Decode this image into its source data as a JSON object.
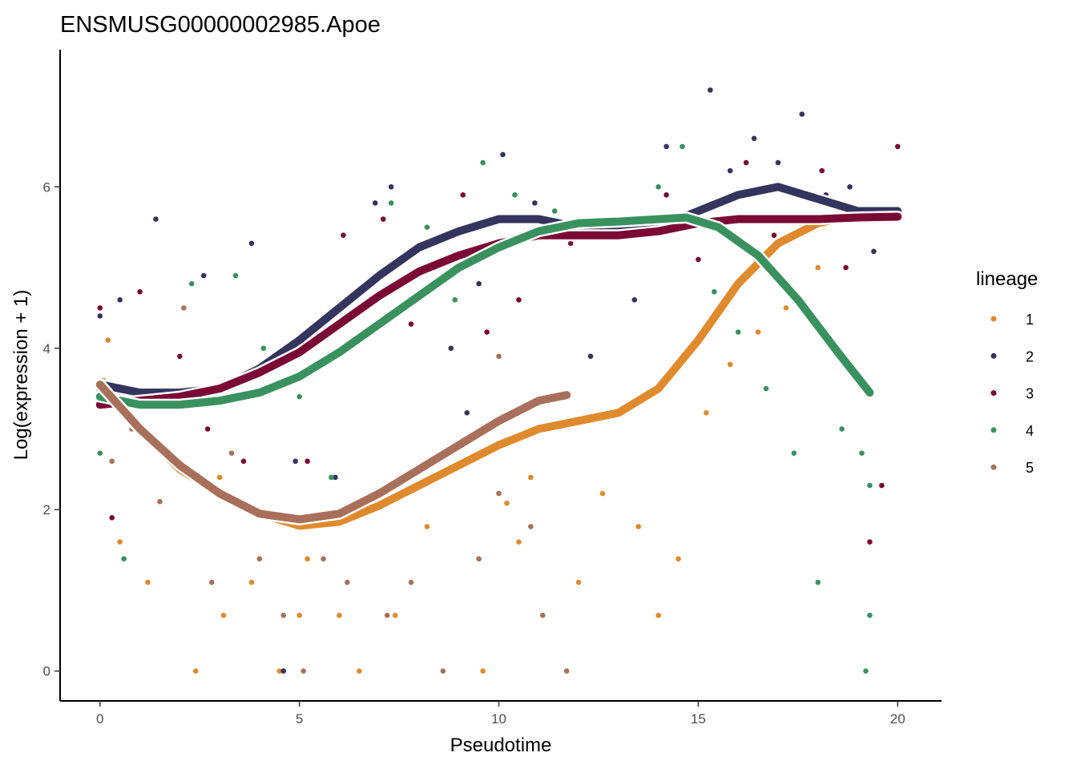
{
  "chart_data": {
    "type": "scatter",
    "title": "ENSMUSG00000002985.Apoe",
    "x_label": "Pseudotime",
    "y_label": "Log(expression + 1)",
    "legend_title": "lineage",
    "legend_position": "right",
    "grid": false,
    "xlim": [
      -1,
      21.1
    ],
    "ylim": [
      -0.37,
      7.7
    ],
    "xticks": [
      0,
      5,
      10,
      15,
      20
    ],
    "yticks": [
      0,
      2,
      4,
      6
    ],
    "series": [
      {
        "name": "1",
        "color": "#e08a2e",
        "x": [
          0.1,
          0.5,
          1.2,
          2.4,
          3.1,
          3.8,
          4.5,
          5.2,
          6.0,
          6.5,
          7.4,
          8.2,
          9.6,
          10.2,
          10.8,
          11.4,
          12.6,
          13.5,
          14.5,
          15.2,
          15.8,
          16.5,
          17.2,
          18.0,
          0.2,
          3.0,
          5.0,
          10.5,
          12.0,
          14.0
        ],
        "y": [
          3.6,
          1.6,
          1.1,
          0,
          0.69,
          1.1,
          0,
          1.39,
          0.69,
          0,
          0.69,
          1.79,
          0,
          2.08,
          2.4,
          3.0,
          2.2,
          1.79,
          1.39,
          3.2,
          3.8,
          4.2,
          4.5,
          5.0,
          4.1,
          2.4,
          0.69,
          1.6,
          1.1,
          0.69
        ],
        "fit_x": [
          0,
          1,
          2,
          3,
          4,
          5,
          6,
          7,
          8,
          9,
          10,
          11,
          12,
          13,
          14,
          15,
          16,
          17,
          18,
          19,
          20
        ],
        "fit_y": [
          3.5,
          3.0,
          2.5,
          2.2,
          1.95,
          1.8,
          1.85,
          2.05,
          2.3,
          2.55,
          2.8,
          3.0,
          3.1,
          3.2,
          3.5,
          4.1,
          4.8,
          5.3,
          5.55,
          5.65,
          5.7
        ]
      },
      {
        "name": "2",
        "color": "#34345e",
        "x": [
          0.0,
          0.5,
          1.4,
          2.6,
          3.8,
          4.9,
          5.9,
          6.9,
          7.3,
          8.8,
          9.5,
          10.1,
          10.9,
          12.3,
          13.4,
          14.2,
          14.9,
          15.3,
          15.8,
          16.4,
          17.0,
          17.6,
          18.2,
          18.8,
          19.4,
          20.0,
          4.6,
          9.2
        ],
        "y": [
          4.4,
          4.6,
          5.6,
          4.9,
          5.3,
          2.6,
          2.4,
          5.8,
          6.0,
          4.0,
          4.8,
          6.4,
          5.8,
          3.9,
          4.6,
          6.5,
          5.7,
          7.2,
          6.2,
          6.6,
          6.3,
          6.9,
          5.9,
          6.0,
          5.2,
          5.6,
          0,
          3.2
        ],
        "fit_x": [
          0,
          1,
          2,
          3,
          4,
          5,
          6,
          7,
          8,
          9,
          10,
          11,
          12,
          13,
          14,
          15,
          16,
          17,
          18,
          19,
          20
        ],
        "fit_y": [
          3.55,
          3.45,
          3.45,
          3.5,
          3.75,
          4.1,
          4.5,
          4.9,
          5.25,
          5.45,
          5.6,
          5.6,
          5.5,
          5.45,
          5.5,
          5.7,
          5.9,
          6.0,
          5.85,
          5.7,
          5.7
        ]
      },
      {
        "name": "3",
        "color": "#7a0a35",
        "x": [
          0.0,
          0.3,
          1.0,
          2.0,
          2.7,
          3.6,
          4.3,
          5.2,
          6.1,
          7.1,
          7.8,
          8.5,
          9.1,
          9.7,
          10.5,
          11.8,
          13.0,
          14.2,
          15.0,
          15.6,
          16.2,
          16.9,
          17.5,
          18.1,
          18.7,
          19.3,
          20.0,
          19.6
        ],
        "y": [
          4.5,
          1.9,
          4.7,
          3.9,
          3.0,
          2.6,
          3.5,
          2.6,
          5.4,
          5.6,
          4.3,
          4.8,
          5.9,
          4.2,
          4.6,
          5.3,
          5.6,
          5.9,
          5.1,
          5.8,
          6.3,
          5.4,
          5.9,
          6.2,
          5.0,
          1.6,
          6.5,
          2.3
        ],
        "fit_x": [
          0,
          1,
          2,
          3,
          4,
          5,
          6,
          7,
          8,
          9,
          10,
          11,
          12,
          13,
          14,
          15,
          16,
          17,
          18,
          19,
          20
        ],
        "fit_y": [
          3.3,
          3.35,
          3.4,
          3.5,
          3.7,
          3.95,
          4.3,
          4.65,
          4.95,
          5.15,
          5.3,
          5.4,
          5.4,
          5.4,
          5.45,
          5.55,
          5.6,
          5.6,
          5.6,
          5.62,
          5.63
        ]
      },
      {
        "name": "4",
        "color": "#3a9160",
        "x": [
          0.0,
          0.6,
          1.5,
          2.3,
          3.4,
          4.1,
          5.0,
          5.8,
          6.6,
          7.3,
          8.2,
          8.9,
          9.6,
          10.4,
          11.4,
          12.9,
          14.0,
          14.6,
          15.4,
          16.0,
          16.7,
          17.4,
          18.0,
          18.6,
          19.1,
          19.2,
          19.3,
          19.3
        ],
        "y": [
          2.7,
          1.39,
          3.3,
          4.8,
          4.9,
          4.0,
          3.4,
          2.4,
          4.7,
          5.8,
          5.5,
          4.6,
          6.3,
          5.9,
          5.7,
          5.6,
          6.0,
          6.5,
          4.7,
          4.2,
          3.5,
          2.7,
          1.1,
          3.0,
          2.7,
          0,
          2.3,
          0.69
        ],
        "fit_x": [
          0,
          1,
          2,
          3,
          4,
          5,
          6,
          7,
          8,
          9,
          10,
          11,
          12,
          13,
          14,
          14.7,
          15.5,
          16.5,
          17.5,
          18.5,
          19.3
        ],
        "fit_y": [
          3.4,
          3.3,
          3.3,
          3.35,
          3.45,
          3.65,
          3.95,
          4.3,
          4.65,
          5.0,
          5.25,
          5.45,
          5.55,
          5.57,
          5.6,
          5.62,
          5.5,
          5.15,
          4.6,
          3.95,
          3.45
        ]
      },
      {
        "name": "5",
        "color": "#a8705a",
        "x": [
          0.0,
          0.3,
          0.8,
          1.5,
          2.1,
          2.8,
          3.3,
          4.0,
          4.6,
          5.1,
          5.6,
          6.2,
          7.2,
          7.8,
          8.6,
          9.5,
          10.0,
          10.0,
          10.8,
          11.1,
          11.7,
          11.8
        ],
        "y": [
          3.5,
          2.6,
          3.0,
          2.1,
          4.5,
          1.1,
          2.7,
          1.39,
          0.69,
          0,
          1.39,
          1.1,
          0.69,
          1.1,
          0,
          1.39,
          2.2,
          3.9,
          1.79,
          0.69,
          0,
          3.1
        ],
        "fit_x": [
          0,
          1,
          2,
          3,
          4,
          5,
          6,
          7,
          8,
          9,
          10,
          11,
          11.7
        ],
        "fit_y": [
          3.55,
          3.0,
          2.55,
          2.2,
          1.95,
          1.88,
          1.95,
          2.2,
          2.5,
          2.8,
          3.1,
          3.35,
          3.42
        ]
      }
    ]
  }
}
